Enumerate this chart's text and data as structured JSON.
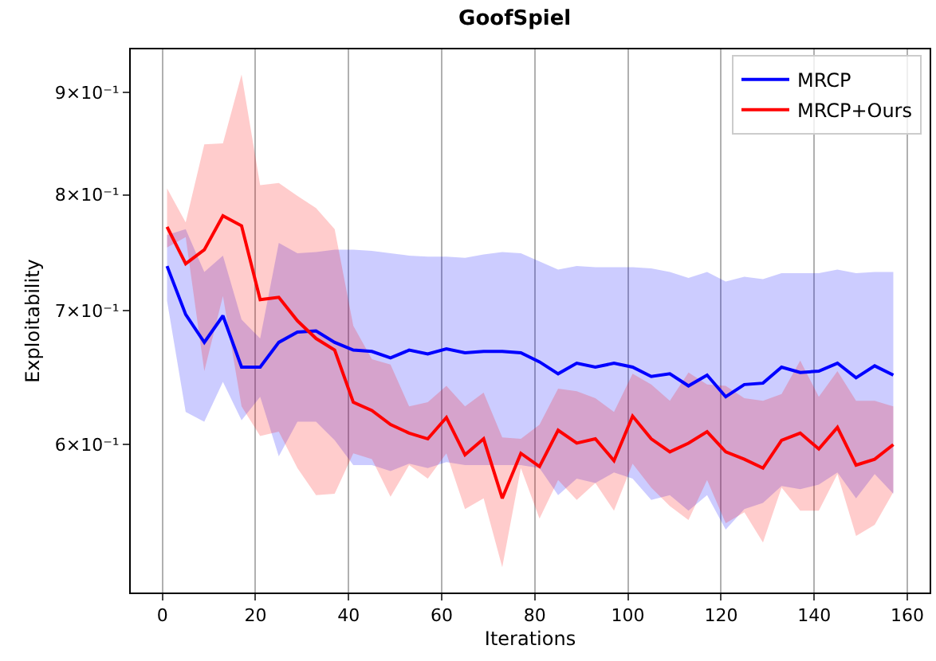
{
  "chart_data": {
    "type": "line",
    "title": "GoofSpiel",
    "xlabel": "Iterations",
    "ylabel": "Exploitability",
    "x": [
      1,
      5,
      9,
      13,
      17,
      21,
      25,
      29,
      33,
      37,
      41,
      45,
      49,
      53,
      57,
      61,
      65,
      69,
      73,
      77,
      81,
      85,
      89,
      93,
      97,
      101,
      105,
      109,
      113,
      117,
      121,
      125,
      129,
      133,
      137,
      141,
      145,
      149,
      153,
      157
    ],
    "series": [
      {
        "name": "MRCP",
        "color": "#0000ff",
        "values": [
          0.737,
          0.697,
          0.675,
          0.696,
          0.656,
          0.656,
          0.675,
          0.683,
          0.684,
          0.675,
          0.669,
          0.668,
          0.663,
          0.669,
          0.666,
          0.67,
          0.667,
          0.668,
          0.668,
          0.667,
          0.66,
          0.651,
          0.659,
          0.656,
          0.659,
          0.656,
          0.649,
          0.651,
          0.642,
          0.65,
          0.634,
          0.643,
          0.644,
          0.656,
          0.652,
          0.653,
          0.659,
          0.648,
          0.657,
          0.65
        ],
        "lower": [
          0.708,
          0.623,
          0.616,
          0.645,
          0.617,
          0.634,
          0.592,
          0.616,
          0.616,
          0.603,
          0.586,
          0.586,
          0.582,
          0.587,
          0.584,
          0.588,
          0.586,
          0.586,
          0.586,
          0.586,
          0.584,
          0.566,
          0.577,
          0.574,
          0.581,
          0.577,
          0.563,
          0.566,
          0.556,
          0.566,
          0.544,
          0.557,
          0.561,
          0.572,
          0.57,
          0.573,
          0.581,
          0.564,
          0.58,
          0.567
        ],
        "upper": [
          0.764,
          0.769,
          0.732,
          0.746,
          0.693,
          0.678,
          0.757,
          0.748,
          0.749,
          0.751,
          0.751,
          0.75,
          0.748,
          0.746,
          0.745,
          0.745,
          0.744,
          0.747,
          0.749,
          0.748,
          0.741,
          0.734,
          0.737,
          0.736,
          0.736,
          0.736,
          0.735,
          0.732,
          0.727,
          0.732,
          0.724,
          0.728,
          0.726,
          0.731,
          0.731,
          0.731,
          0.734,
          0.731,
          0.732,
          0.732
        ]
      },
      {
        "name": "MRCP+Ours",
        "color": "#ff0000",
        "values": [
          0.771,
          0.739,
          0.751,
          0.781,
          0.772,
          0.709,
          0.711,
          0.692,
          0.678,
          0.669,
          0.63,
          0.624,
          0.614,
          0.608,
          0.604,
          0.619,
          0.593,
          0.604,
          0.564,
          0.594,
          0.585,
          0.61,
          0.601,
          0.604,
          0.589,
          0.62,
          0.604,
          0.595,
          0.601,
          0.609,
          0.595,
          0.59,
          0.584,
          0.603,
          0.608,
          0.597,
          0.612,
          0.586,
          0.59,
          0.6
        ],
        "lower": [
          0.753,
          0.762,
          0.653,
          0.712,
          0.627,
          0.606,
          0.609,
          0.584,
          0.566,
          0.567,
          0.594,
          0.59,
          0.565,
          0.586,
          0.577,
          0.594,
          0.557,
          0.564,
          0.521,
          0.584,
          0.551,
          0.576,
          0.563,
          0.574,
          0.556,
          0.587,
          0.571,
          0.559,
          0.55,
          0.576,
          0.548,
          0.555,
          0.536,
          0.571,
          0.556,
          0.556,
          0.58,
          0.54,
          0.547,
          0.568
        ],
        "upper": [
          0.806,
          0.775,
          0.848,
          0.849,
          0.919,
          0.809,
          0.811,
          0.799,
          0.788,
          0.769,
          0.688,
          0.662,
          0.658,
          0.627,
          0.63,
          0.642,
          0.627,
          0.637,
          0.605,
          0.604,
          0.614,
          0.64,
          0.638,
          0.633,
          0.623,
          0.651,
          0.643,
          0.631,
          0.652,
          0.643,
          0.642,
          0.633,
          0.631,
          0.636,
          0.661,
          0.634,
          0.653,
          0.631,
          0.631,
          0.627
        ]
      }
    ],
    "xlim": [
      -6.8,
      164.8
    ],
    "xticks": [
      0,
      20,
      40,
      60,
      80,
      100,
      120,
      140,
      160
    ],
    "ylim": [
      0.506,
      0.946
    ],
    "log": "y",
    "yticks": [
      {
        "value": 0.6,
        "label": "6×10⁻¹"
      },
      {
        "value": 0.7,
        "label": "7×10⁻¹"
      },
      {
        "value": 0.8,
        "label": "8×10⁻¹"
      },
      {
        "value": 0.9,
        "label": "9×10⁻¹"
      }
    ],
    "grid": "x",
    "legend": "top right",
    "marker": "none",
    "line_style": "solid"
  }
}
